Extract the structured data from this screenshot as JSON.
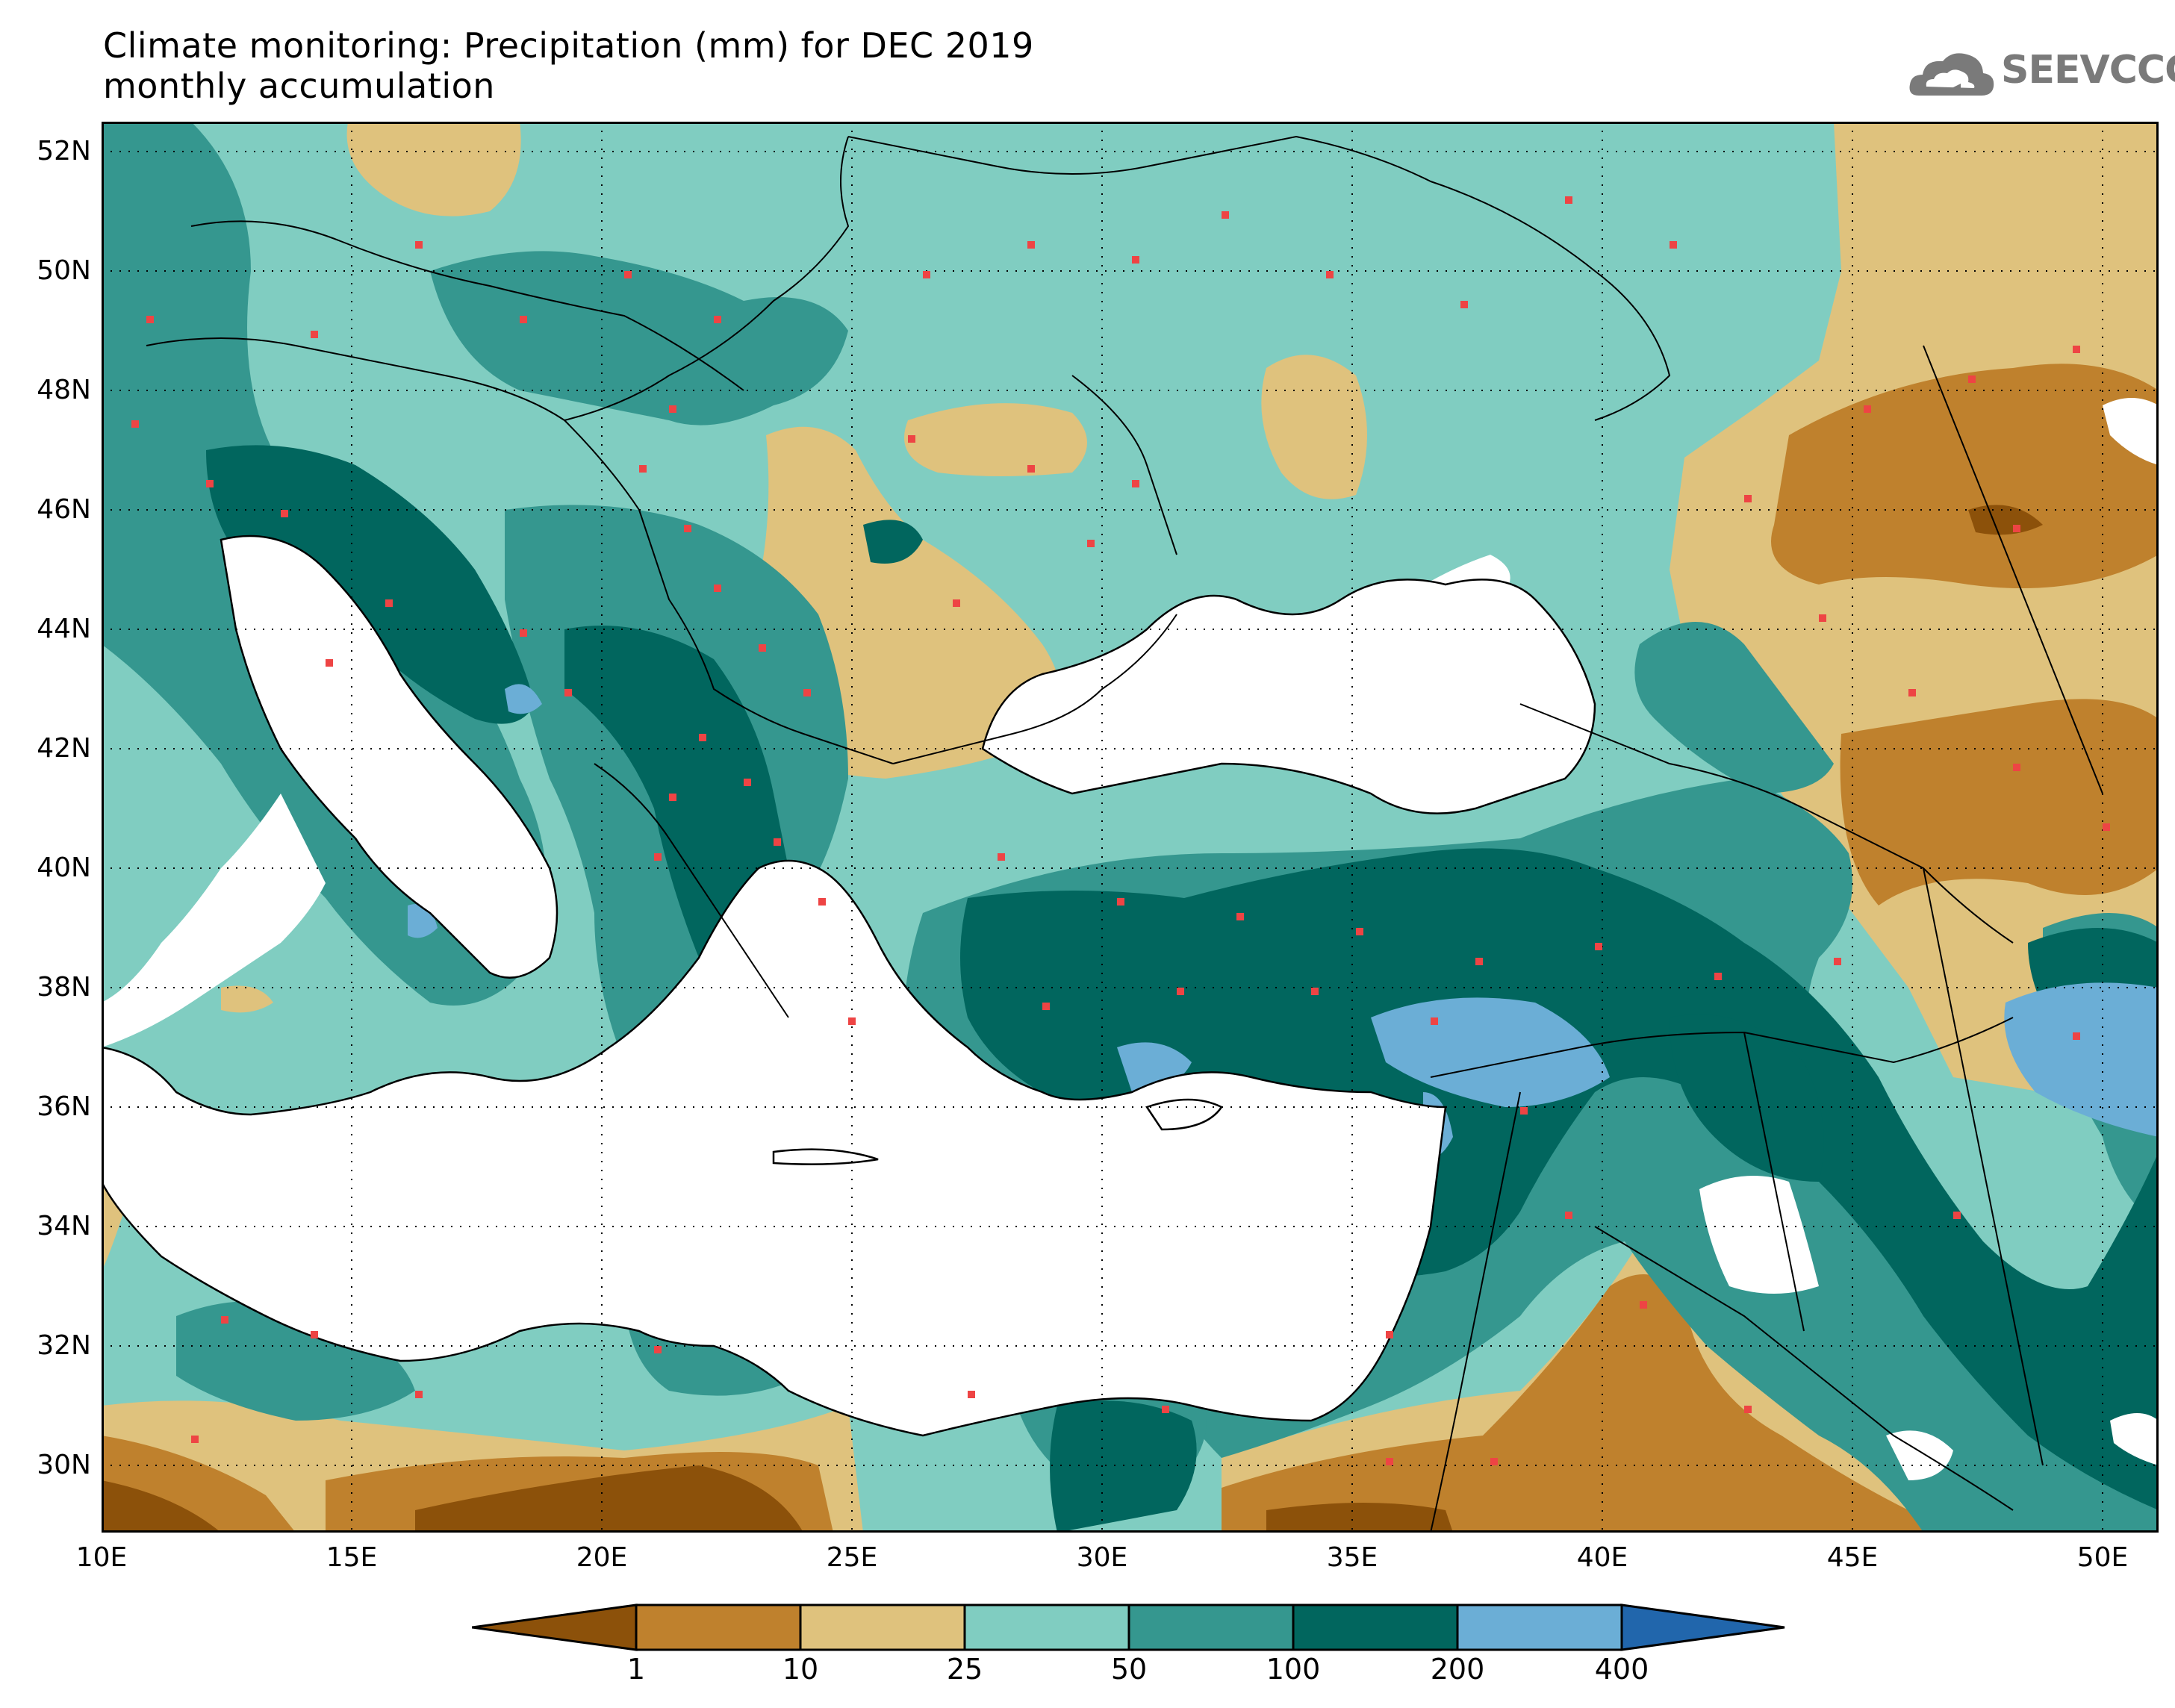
{
  "title": {
    "line1": "Climate monitoring: Precipitation (mm) for DEC 2019",
    "line2": "monthly accumulation"
  },
  "logo": {
    "text": "SEEVCCC",
    "icon": "cloud-icon",
    "color": "#7a7a7a"
  },
  "map": {
    "projection": "lat-lon",
    "lon_range": [
      10,
      51
    ],
    "lat_range": [
      29,
      52.5
    ],
    "grid": "dotted",
    "lat_labels": [
      "52N",
      "50N",
      "48N",
      "46N",
      "44N",
      "42N",
      "40N",
      "38N",
      "36N",
      "34N",
      "32N",
      "30N"
    ],
    "lon_labels": [
      "10E",
      "15E",
      "20E",
      "25E",
      "30E",
      "35E",
      "40E",
      "45E",
      "50E"
    ],
    "station_marker_color": "#ee4444"
  },
  "legend": {
    "unit": "mm",
    "boundaries": [
      "1",
      "10",
      "25",
      "50",
      "100",
      "200",
      "400"
    ],
    "colors": {
      "lt1": "#8c510a",
      "1-10": "#bf812d",
      "10-25": "#dfc27d",
      "25-50": "#80cdc1",
      "50-100": "#35978f",
      "100-200": "#01665e",
      "200-400": "#6baed6",
      "gt400": "#2166ac"
    }
  }
}
